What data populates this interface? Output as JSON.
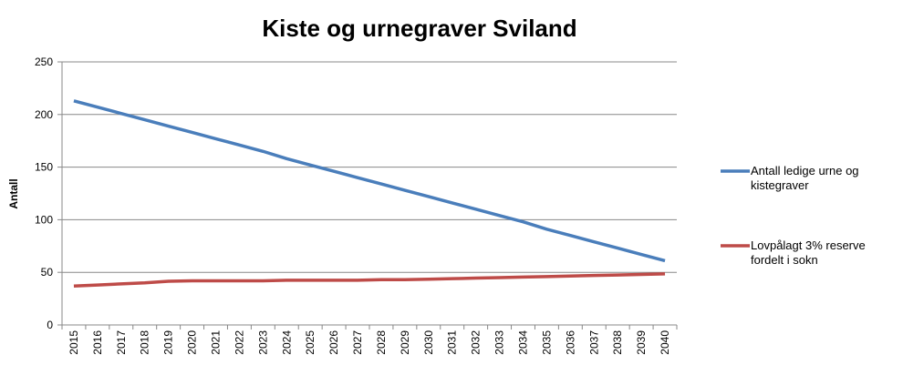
{
  "chart_data": {
    "type": "line",
    "title": "Kiste og urnegraver Sviland",
    "y_label": "Antall",
    "categories": [
      "2015",
      "2016",
      "2017",
      "2018",
      "2019",
      "2020",
      "2021",
      "2022",
      "2023",
      "2024",
      "2025",
      "2026",
      "2027",
      "2028",
      "2029",
      "2030",
      "2031",
      "2032",
      "2033",
      "2034",
      "2035",
      "2036",
      "2037",
      "2038",
      "2039",
      "2040"
    ],
    "series": [
      {
        "name": "Antall ledige urne og kistegraver",
        "color": "#4a7ebb",
        "values": [
          213,
          207,
          201,
          195,
          189,
          183,
          177,
          171,
          165,
          158,
          152,
          146,
          140,
          134,
          128,
          122,
          116,
          110,
          104,
          98,
          91,
          85,
          79,
          73,
          67,
          61
        ]
      },
      {
        "name": "Lovpålagt 3% reserve fordelt i sokn",
        "color": "#be4b48",
        "values": [
          37,
          38,
          39,
          40,
          41.5,
          42,
          42,
          42,
          42,
          42.5,
          42.5,
          42.5,
          42.5,
          43,
          43,
          43.5,
          44,
          44.5,
          45,
          45.5,
          46,
          46.5,
          47,
          47.5,
          48,
          48.5
        ]
      }
    ],
    "ylim": [
      0,
      250
    ],
    "yticks": [
      0,
      50,
      100,
      150,
      200,
      250
    ],
    "grid": true,
    "legend": "right"
  }
}
